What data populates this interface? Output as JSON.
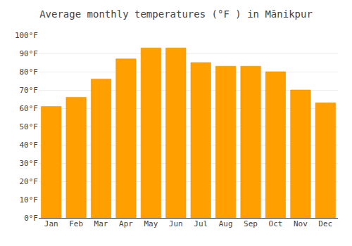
{
  "chart_data": {
    "type": "bar",
    "title": "Average monthly temperatures (°F ) in Mānikpur",
    "categories": [
      "Jan",
      "Feb",
      "Mar",
      "Apr",
      "May",
      "Jun",
      "Jul",
      "Aug",
      "Sep",
      "Oct",
      "Nov",
      "Dec"
    ],
    "values": [
      61,
      66,
      76,
      87,
      93,
      93,
      85,
      83,
      83,
      80,
      70,
      63
    ],
    "color": "#FFA000",
    "ylim": [
      0,
      100
    ],
    "yticks": [
      {
        "value": 0,
        "label": "0°F"
      },
      {
        "value": 10,
        "label": "10°F"
      },
      {
        "value": 20,
        "label": "20°F"
      },
      {
        "value": 30,
        "label": "30°F"
      },
      {
        "value": 40,
        "label": "40°F"
      },
      {
        "value": 50,
        "label": "50°F"
      },
      {
        "value": 60,
        "label": "60°F"
      },
      {
        "value": 70,
        "label": "70°F"
      },
      {
        "value": 80,
        "label": "80°F"
      },
      {
        "value": 90,
        "label": "90°F"
      },
      {
        "value": 100,
        "label": "100°F"
      }
    ],
    "grid": true
  }
}
